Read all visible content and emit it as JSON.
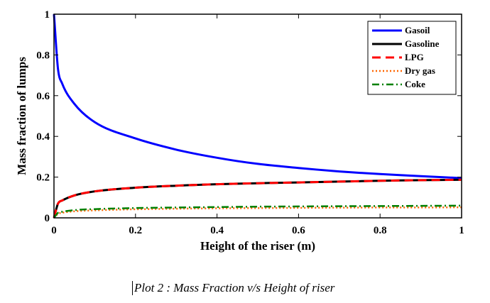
{
  "caption": "Plot 2 : Mass Fraction v/s Height of riser",
  "chart_data": {
    "type": "line",
    "xlabel": "Height of the riser (m)",
    "ylabel": "Mass fraction of lumps",
    "xlim": [
      0,
      1
    ],
    "ylim": [
      0,
      1
    ],
    "xticks": [
      "0",
      "0.2",
      "0.4",
      "0.6",
      "0.8",
      "1"
    ],
    "yticks": [
      "0",
      "0.2",
      "0.4",
      "0.6",
      "0.8",
      "1"
    ],
    "grid": false,
    "legend_position": "top-right",
    "x": [
      0,
      0.01,
      0.02,
      0.05,
      0.1,
      0.2,
      0.3,
      0.4,
      0.5,
      0.6,
      0.7,
      0.8,
      0.9,
      1.0
    ],
    "series": [
      {
        "name": "Gasoil",
        "color": "#0000ff",
        "dash": "solid",
        "values": [
          1.0,
          0.73,
          0.66,
          0.56,
          0.47,
          0.39,
          0.335,
          0.295,
          0.265,
          0.245,
          0.228,
          0.215,
          0.205,
          0.195
        ]
      },
      {
        "name": "Gasoline",
        "color": "#000000",
        "dash": "solid",
        "values": [
          0.0,
          0.07,
          0.085,
          0.11,
          0.13,
          0.148,
          0.158,
          0.165,
          0.17,
          0.174,
          0.178,
          0.182,
          0.185,
          0.187
        ]
      },
      {
        "name": "LPG",
        "color": "#ff0000",
        "dash": "dashed",
        "values": [
          0.0,
          0.07,
          0.085,
          0.11,
          0.13,
          0.148,
          0.158,
          0.165,
          0.17,
          0.174,
          0.178,
          0.182,
          0.185,
          0.187
        ]
      },
      {
        "name": "Dry gas",
        "color": "#ff6600",
        "dash": "dotted",
        "values": [
          0.0,
          0.02,
          0.025,
          0.032,
          0.037,
          0.042,
          0.045,
          0.047,
          0.048,
          0.049,
          0.05,
          0.051,
          0.051,
          0.052
        ]
      },
      {
        "name": "Coke",
        "color": "#008000",
        "dash": "dashdot",
        "values": [
          0.0,
          0.025,
          0.03,
          0.038,
          0.043,
          0.048,
          0.051,
          0.053,
          0.055,
          0.056,
          0.057,
          0.058,
          0.059,
          0.06
        ]
      }
    ]
  }
}
